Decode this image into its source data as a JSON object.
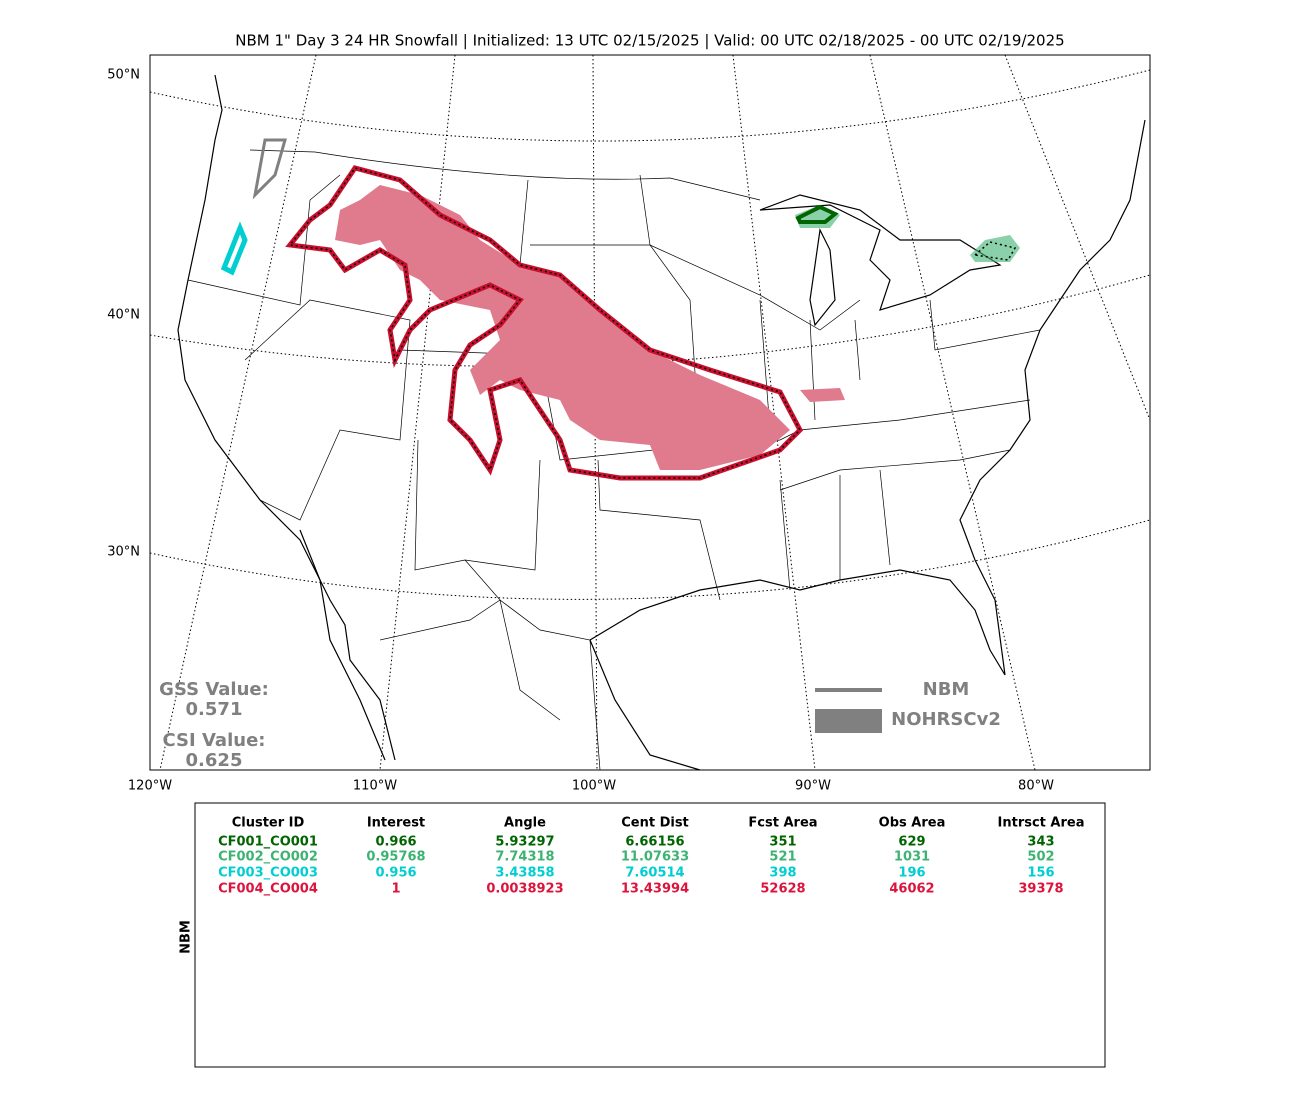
{
  "header": {
    "title": "NBM 1\" Day 3 24 HR Snowfall | Initialized: 13 UTC 02/15/2025 | Valid: 00 UTC 02/18/2025 - 00 UTC 02/19/2025"
  },
  "map": {
    "lat_labels": [
      "50°N",
      "40°N",
      "30°N"
    ],
    "lon_labels": [
      "120°W",
      "110°W",
      "100°W",
      "90°W",
      "80°W"
    ],
    "legend": [
      "NBM",
      "NOHRSCv2"
    ],
    "scores": [
      {
        "label": "GSS Value:",
        "value": "0.571"
      },
      {
        "label": "CSI Value:",
        "value": "0.625"
      }
    ]
  },
  "table": {
    "side_label": "NBM",
    "header": [
      "Cluster ID",
      "Interest",
      "Angle",
      "Cent Dist",
      "Fcst Area",
      "Obs Area",
      "Intrsct Area"
    ],
    "rows": [
      {
        "color": "#006400",
        "cells": [
          "CF001_CO001",
          "0.966",
          "5.93297",
          "6.66156",
          "351",
          "629",
          "343"
        ]
      },
      {
        "color": "#3cb371",
        "cells": [
          "CF002_CO002",
          "0.95768",
          "7.74318",
          "11.07633",
          "521",
          "1031",
          "502"
        ]
      },
      {
        "color": "#00ced1",
        "cells": [
          "CF003_CO003",
          "0.956",
          "3.43858",
          "7.60514",
          "398",
          "196",
          "156"
        ]
      },
      {
        "color": "#dc143c",
        "cells": [
          "CF004_CO004",
          "1",
          "0.0038923",
          "13.43994",
          "52628",
          "46062",
          "39378"
        ]
      }
    ]
  }
}
